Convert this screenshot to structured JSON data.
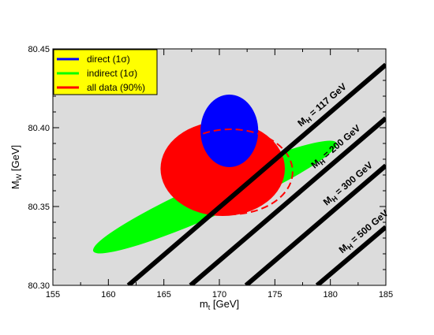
{
  "chart_data": {
    "type": "contour",
    "title": "",
    "xlabel": {
      "main": "m",
      "sub": "t",
      "unit": " [GeV]"
    },
    "ylabel": {
      "main": "M",
      "sub": "W",
      "unit": " [GeV]"
    },
    "xlim": [
      155,
      185
    ],
    "ylim": [
      80.3,
      80.45
    ],
    "xticks": [
      155,
      160,
      165,
      170,
      175,
      180,
      185
    ],
    "yticks": [
      "80.30",
      "80.35",
      "80.40",
      "80.45"
    ],
    "background": "#dcdcdc",
    "legend": {
      "position": "top-left",
      "background": "#ffff00",
      "entries": [
        {
          "label": "direct (1σ)",
          "color": "#0000ff"
        },
        {
          "label": "indirect (1σ)",
          "color": "#00ff00"
        },
        {
          "label": "all data (90%)",
          "color": "#ff0000"
        }
      ]
    },
    "ellipses": [
      {
        "name": "indirect (1σ)",
        "color": "#00ff00",
        "cx": 169.6,
        "cy": 80.356,
        "semi_major": 12.0,
        "semi_minor": 1.55,
        "angle_deg": 24
      },
      {
        "name": "all data (90%)",
        "color": "#ff0000",
        "cx": 170.3,
        "cy": 80.374,
        "rx": 5.6,
        "ry": 0.03
      },
      {
        "name": "direct (1σ)",
        "color": "#0000ff",
        "cx": 170.9,
        "cy": 80.398,
        "rx": 2.6,
        "ry": 0.023
      }
    ],
    "dashed_region": {
      "color": "#ff0000",
      "cx": 171.0,
      "cy": 80.372,
      "rx": 5.6,
      "ry": 0.027
    },
    "higgs_lines": [
      {
        "label_main": "M",
        "label_sub": "H",
        "label_value": " = 117 GeV",
        "points": [
          [
            161.8,
            80.3
          ],
          [
            185,
            80.44
          ]
        ]
      },
      {
        "label_main": "M",
        "label_sub": "H",
        "label_value": " = 200 GeV",
        "points": [
          [
            167.4,
            80.3
          ],
          [
            185,
            80.406
          ]
        ]
      },
      {
        "label_main": "M",
        "label_sub": "H",
        "label_value": " = 300 GeV",
        "points": [
          [
            172.4,
            80.3
          ],
          [
            185,
            80.376
          ]
        ]
      },
      {
        "label_main": "M",
        "label_sub": "H",
        "label_value": " = 500 GeV",
        "points": [
          [
            178.8,
            80.3
          ],
          [
            185,
            80.337
          ]
        ]
      }
    ]
  }
}
